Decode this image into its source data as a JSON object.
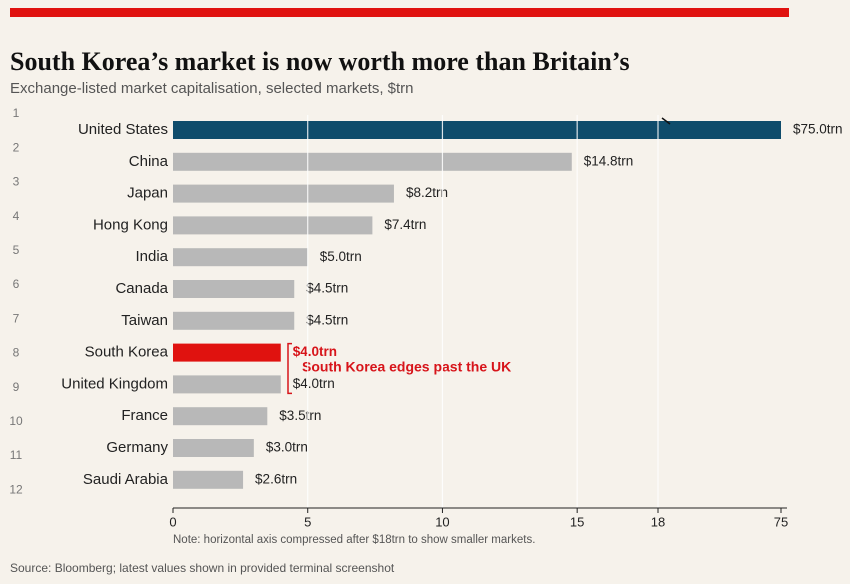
{
  "chart_data": {
    "type": "bar",
    "orientation": "horizontal",
    "title": "South Korea’s market is now worth more than Britain’s",
    "subtitle": "Exchange-listed market capitalisation, selected markets, $trn",
    "ranks": [
      1,
      2,
      3,
      4,
      5,
      6,
      7,
      8,
      9,
      10,
      11,
      12
    ],
    "categories": [
      "United States",
      "China",
      "Japan",
      "Hong Kong",
      "India",
      "Canada",
      "Taiwan",
      "South Korea",
      "United Kingdom",
      "France",
      "Germany",
      "Saudi Arabia"
    ],
    "values": [
      75.0,
      14.8,
      8.2,
      7.4,
      5.0,
      4.5,
      4.5,
      4.0,
      4.0,
      3.5,
      3.0,
      2.6
    ],
    "value_labels": [
      "$75.0trn",
      "$14.8trn",
      "$8.2trn",
      "$7.4trn",
      "$5.0trn",
      "$4.5trn",
      "$4.5trn",
      "$4.0trn",
      "$4.0trn",
      "$3.5trn",
      "$3.0trn",
      "$2.6trn"
    ],
    "colors": [
      "#0f4c6b",
      "#b8b8b8",
      "#b8b8b8",
      "#b8b8b8",
      "#b8b8b8",
      "#b8b8b8",
      "#b8b8b8",
      "#e0120f",
      "#b8b8b8",
      "#b8b8b8",
      "#b8b8b8",
      "#b8b8b8"
    ],
    "annotation": {
      "text": "South Korea edges past the UK",
      "color": "#d7141a"
    },
    "xlim": [
      0,
      75
    ],
    "xticks": [
      0,
      5,
      10,
      15,
      18,
      75
    ],
    "grid": true,
    "note": "Note: horizontal axis compressed after $18trn to show smaller markets.",
    "source": "Source: Bloomberg; latest values shown in provided terminal screenshot"
  }
}
